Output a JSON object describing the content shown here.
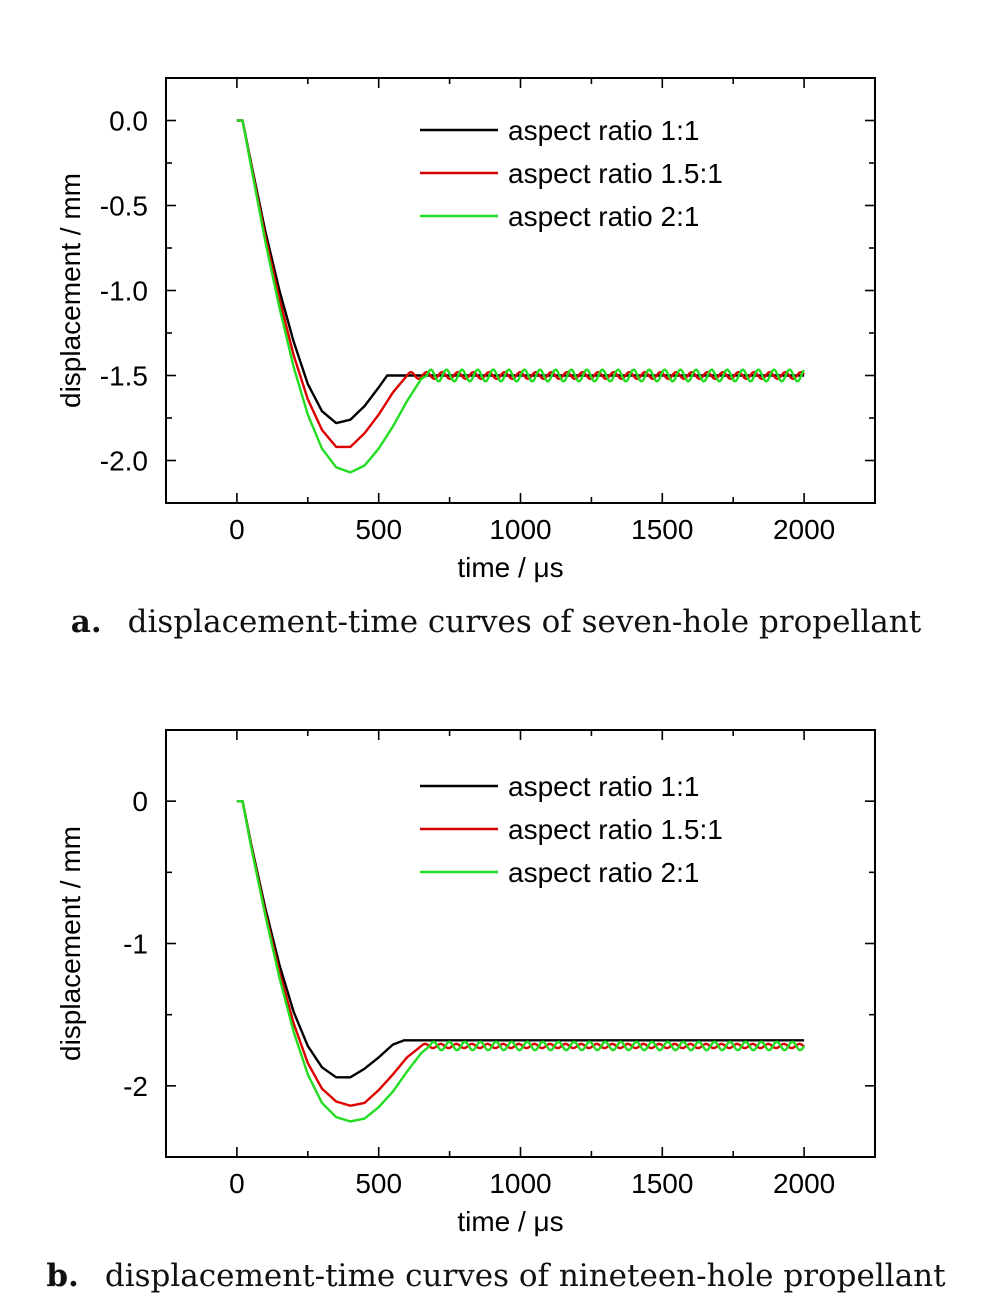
{
  "charts": [
    {
      "caption_letter": "a.",
      "caption_text": "displacement-time curves of seven-hole propellant"
    },
    {
      "caption_letter": "b.",
      "caption_text": "displacement-time curves of nineteen-hole propellant"
    }
  ],
  "chart_data": [
    {
      "type": "line",
      "title": "",
      "xlabel": "time / μs",
      "ylabel": "displacement / mm",
      "xlim": [
        -250,
        2250
      ],
      "ylim": [
        -2.25,
        0.25
      ],
      "xticks": [
        0,
        500,
        1000,
        1500,
        2000
      ],
      "xtick_labels": [
        "0",
        "500",
        "1000",
        "1500",
        "2000"
      ],
      "yticks": [
        0.0,
        -0.5,
        -1.0,
        -1.5,
        -2.0
      ],
      "ytick_labels": [
        "0.0",
        "-0.5",
        "-1.0",
        "-1.5",
        "-2.0"
      ],
      "grid": false,
      "legend": "top-right",
      "series": [
        {
          "name": "aspect ratio 1:1",
          "color": "#000000",
          "x": [
            0,
            20,
            50,
            100,
            150,
            200,
            250,
            300,
            350,
            400,
            450,
            500,
            530,
            600,
            700,
            800,
            900,
            1000,
            1200,
            1400,
            1600,
            1800,
            2000
          ],
          "y": [
            0,
            0,
            -0.25,
            -0.65,
            -1.0,
            -1.3,
            -1.55,
            -1.71,
            -1.78,
            -1.76,
            -1.68,
            -1.57,
            -1.5,
            -1.5,
            -1.5,
            -1.5,
            -1.5,
            -1.5,
            -1.5,
            -1.5,
            -1.5,
            -1.5,
            -1.5
          ]
        },
        {
          "name": "aspect ratio 1.5:1",
          "color": "#dd0000",
          "x": [
            0,
            20,
            50,
            100,
            150,
            200,
            250,
            300,
            350,
            400,
            450,
            500,
            550,
            600,
            2000
          ],
          "y": [
            0,
            0,
            -0.26,
            -0.68,
            -1.05,
            -1.38,
            -1.64,
            -1.82,
            -1.92,
            -1.92,
            -1.84,
            -1.73,
            -1.6,
            -1.5,
            -1.5
          ],
          "oscillation_start": 600,
          "oscillation_amplitude": 0.02
        },
        {
          "name": "aspect ratio 2:1",
          "color": "#22dd22",
          "x": [
            0,
            20,
            50,
            100,
            150,
            200,
            250,
            300,
            350,
            400,
            450,
            500,
            550,
            600,
            650,
            670,
            2000
          ],
          "y": [
            0,
            0,
            -0.27,
            -0.71,
            -1.1,
            -1.45,
            -1.73,
            -1.93,
            -2.04,
            -2.07,
            -2.03,
            -1.93,
            -1.8,
            -1.65,
            -1.52,
            -1.5,
            -1.5
          ],
          "oscillation_start": 670,
          "oscillation_amplitude": 0.035
        }
      ]
    },
    {
      "type": "line",
      "title": "",
      "xlabel": "time / μs",
      "ylabel": "displacement / mm",
      "xlim": [
        -250,
        2250
      ],
      "ylim": [
        -2.5,
        0.5
      ],
      "xticks": [
        0,
        500,
        1000,
        1500,
        2000
      ],
      "xtick_labels": [
        "0",
        "500",
        "1000",
        "1500",
        "2000"
      ],
      "yticks": [
        0,
        -1,
        -2
      ],
      "ytick_labels": [
        "0",
        "-1",
        "-2"
      ],
      "grid": false,
      "legend": "top-right",
      "series": [
        {
          "name": "aspect ratio 1:1",
          "color": "#000000",
          "x": [
            0,
            20,
            50,
            100,
            150,
            200,
            250,
            300,
            350,
            400,
            450,
            500,
            550,
            590,
            700,
            800,
            1000,
            1200,
            1400,
            1600,
            1800,
            2000
          ],
          "y": [
            0,
            0,
            -0.3,
            -0.75,
            -1.15,
            -1.48,
            -1.72,
            -1.87,
            -1.94,
            -1.94,
            -1.88,
            -1.8,
            -1.71,
            -1.68,
            -1.68,
            -1.68,
            -1.68,
            -1.68,
            -1.68,
            -1.68,
            -1.68,
            -1.68
          ]
        },
        {
          "name": "aspect ratio 1.5:1",
          "color": "#dd0000",
          "x": [
            0,
            20,
            50,
            100,
            150,
            200,
            250,
            300,
            350,
            400,
            450,
            500,
            550,
            600,
            650,
            2000
          ],
          "y": [
            0,
            0,
            -0.31,
            -0.78,
            -1.2,
            -1.56,
            -1.84,
            -2.02,
            -2.11,
            -2.14,
            -2.12,
            -2.03,
            -1.92,
            -1.8,
            -1.72,
            -1.72
          ],
          "oscillation_start": 650,
          "oscillation_amplitude": 0.015
        },
        {
          "name": "aspect ratio 2:1",
          "color": "#22dd22",
          "x": [
            0,
            20,
            50,
            100,
            150,
            200,
            250,
            300,
            350,
            400,
            450,
            500,
            550,
            600,
            650,
            680,
            2000
          ],
          "y": [
            0,
            0,
            -0.32,
            -0.8,
            -1.24,
            -1.62,
            -1.92,
            -2.12,
            -2.22,
            -2.25,
            -2.23,
            -2.15,
            -2.04,
            -1.9,
            -1.77,
            -1.72,
            -1.72
          ],
          "oscillation_start": 680,
          "oscillation_amplitude": 0.03
        }
      ]
    }
  ]
}
